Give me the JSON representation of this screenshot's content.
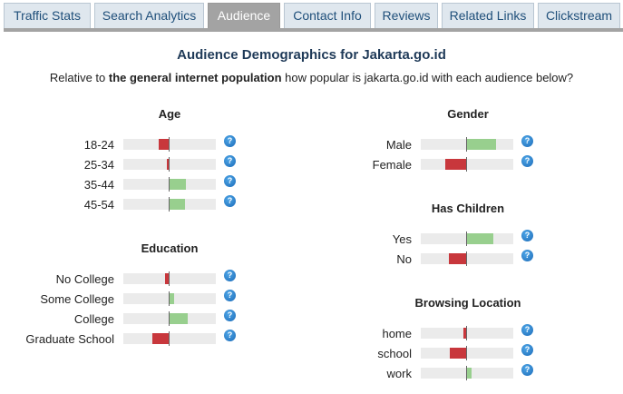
{
  "tabs": [
    {
      "label": "Traffic Stats",
      "active": false
    },
    {
      "label": "Search Analytics",
      "active": false
    },
    {
      "label": "Audience",
      "active": true
    },
    {
      "label": "Contact Info",
      "active": false
    },
    {
      "label": "Reviews",
      "active": false
    },
    {
      "label": "Related Links",
      "active": false
    },
    {
      "label": "Clickstream",
      "active": false
    }
  ],
  "heading": "Audience Demographics for Jakarta.go.id",
  "subheading": {
    "prefix": "Relative to ",
    "bold": "the general internet population",
    "suffix": " how popular is jakarta.go.id with each audience below?"
  },
  "colors": {
    "negative": "#c8373c",
    "positive": "#98cf8e",
    "tab_active": "#a3a3a3"
  },
  "help_icon": "question-mark-circle-icon",
  "sections": {
    "age": {
      "title": "Age",
      "rows": [
        {
          "label": "18-24",
          "value": -0.22
        },
        {
          "label": "25-34",
          "value": -0.04
        },
        {
          "label": "35-44",
          "value": 0.38
        },
        {
          "label": "45-54",
          "value": 0.36
        }
      ]
    },
    "education": {
      "title": "Education",
      "rows": [
        {
          "label": "No College",
          "value": -0.08
        },
        {
          "label": "Some College",
          "value": 0.12
        },
        {
          "label": "College",
          "value": 0.42
        },
        {
          "label": "Graduate School",
          "value": -0.36
        }
      ]
    },
    "gender": {
      "title": "Gender",
      "rows": [
        {
          "label": "Male",
          "value": 0.66
        },
        {
          "label": "Female",
          "value": -0.46
        }
      ]
    },
    "children": {
      "title": "Has Children",
      "rows": [
        {
          "label": "Yes",
          "value": 0.6
        },
        {
          "label": "No",
          "value": -0.38
        }
      ]
    },
    "location": {
      "title": "Browsing Location",
      "rows": [
        {
          "label": "home",
          "value": -0.06
        },
        {
          "label": "school",
          "value": -0.36
        },
        {
          "label": "work",
          "value": 0.12
        }
      ]
    }
  }
}
